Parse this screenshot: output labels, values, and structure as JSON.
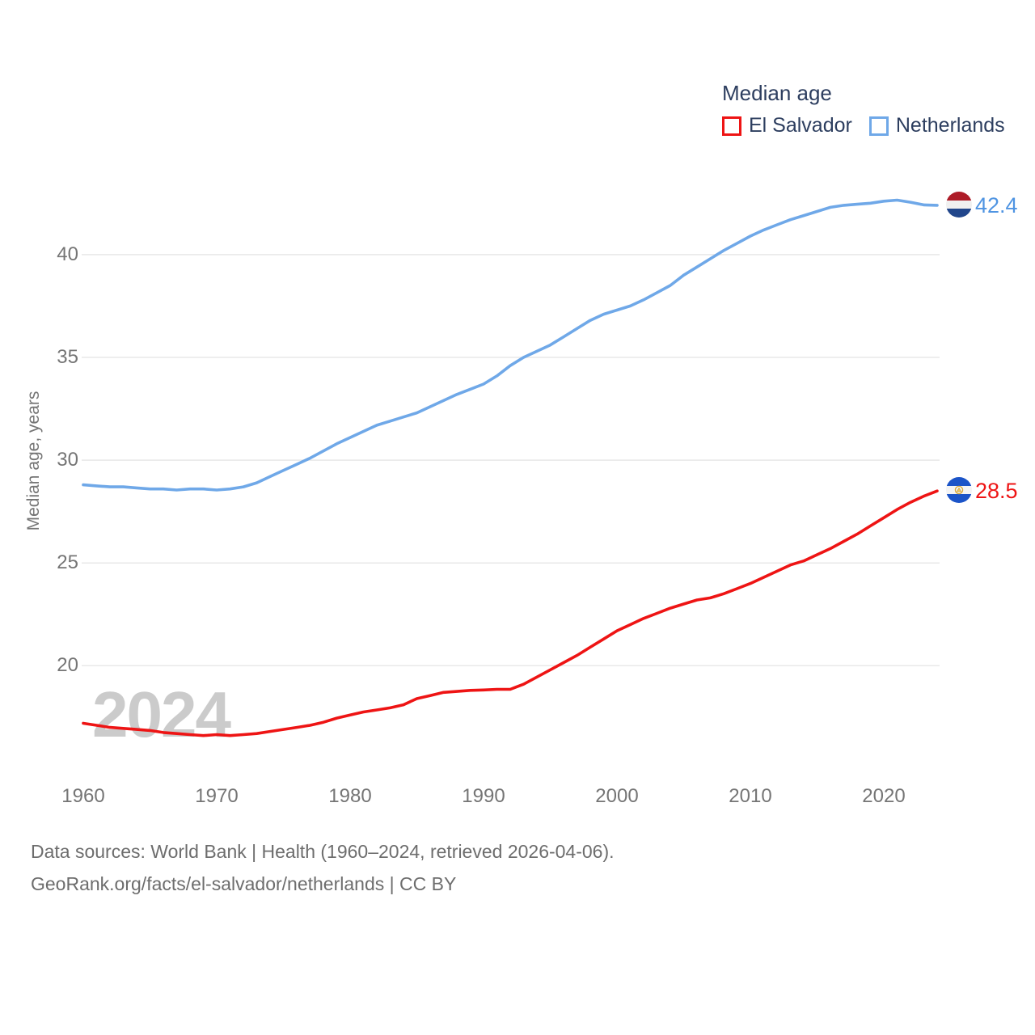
{
  "legend": {
    "title": "Median age",
    "items": [
      {
        "label": "El Salvador",
        "color": "#ee1414"
      },
      {
        "label": "Netherlands",
        "color": "#6fa8e8"
      }
    ]
  },
  "end_labels": {
    "netherlands": "42.4",
    "el_salvador": "28.5"
  },
  "watermark": "2024",
  "footer": {
    "line1": "Data sources: World Bank | Health (1960–2024, retrieved 2026-04-06).",
    "line2": "GeoRank.org/facts/el-salvador/netherlands | CC BY"
  },
  "colors": {
    "el_salvador_line": "#ee1414",
    "netherlands_line": "#6fa8e8",
    "el_salvador_label": "#ee1414",
    "netherlands_label": "#4f94e2",
    "axis_text": "#757575",
    "grid": "#e8e8e8",
    "watermark": "#cbcbcb",
    "footer_text": "#6d6d6d",
    "legend_text": "#2d3e5f"
  },
  "chart_data": {
    "type": "line",
    "title": "Median age",
    "xlabel": "",
    "ylabel": "Median age, years",
    "grid": "horizontal",
    "legend_position": "top-right",
    "xlim": [
      1960,
      2024
    ],
    "ylim": [
      15.5,
      43.2
    ],
    "yticks": [
      20,
      25,
      30,
      35,
      40
    ],
    "xticks": [
      1960,
      1970,
      1980,
      1990,
      2000,
      2010,
      2020
    ],
    "x": [
      1960,
      1961,
      1962,
      1963,
      1964,
      1965,
      1966,
      1967,
      1968,
      1969,
      1970,
      1971,
      1972,
      1973,
      1974,
      1975,
      1976,
      1977,
      1978,
      1979,
      1980,
      1981,
      1982,
      1983,
      1984,
      1985,
      1986,
      1987,
      1988,
      1989,
      1990,
      1991,
      1992,
      1993,
      1994,
      1995,
      1996,
      1997,
      1998,
      1999,
      2000,
      2001,
      2002,
      2003,
      2004,
      2005,
      2006,
      2007,
      2008,
      2009,
      2010,
      2011,
      2012,
      2013,
      2014,
      2015,
      2016,
      2017,
      2018,
      2019,
      2020,
      2021,
      2022,
      2023,
      2024
    ],
    "series": [
      {
        "name": "El Salvador",
        "color": "#ee1414",
        "end_value": 28.5,
        "values": [
          17.2,
          17.1,
          17.0,
          16.95,
          16.9,
          16.85,
          16.75,
          16.7,
          16.65,
          16.6,
          16.65,
          16.6,
          16.65,
          16.7,
          16.8,
          16.9,
          17.0,
          17.1,
          17.25,
          17.45,
          17.6,
          17.75,
          17.85,
          17.95,
          18.1,
          18.4,
          18.55,
          18.7,
          18.75,
          18.8,
          18.82,
          18.85,
          18.85,
          19.1,
          19.45,
          19.8,
          20.15,
          20.5,
          20.9,
          21.3,
          21.7,
          22.0,
          22.3,
          22.55,
          22.8,
          23.0,
          23.2,
          23.3,
          23.5,
          23.75,
          24.0,
          24.3,
          24.6,
          24.9,
          25.1,
          25.4,
          25.7,
          26.05,
          26.4,
          26.8,
          27.2,
          27.6,
          27.95,
          28.25,
          28.5
        ]
      },
      {
        "name": "Netherlands",
        "color": "#6fa8e8",
        "end_value": 42.4,
        "values": [
          28.8,
          28.75,
          28.7,
          28.7,
          28.65,
          28.6,
          28.6,
          28.55,
          28.6,
          28.6,
          28.55,
          28.6,
          28.7,
          28.9,
          29.2,
          29.5,
          29.8,
          30.1,
          30.45,
          30.8,
          31.1,
          31.4,
          31.7,
          31.9,
          32.1,
          32.3,
          32.6,
          32.9,
          33.2,
          33.45,
          33.7,
          34.1,
          34.6,
          35.0,
          35.3,
          35.6,
          36.0,
          36.4,
          36.8,
          37.1,
          37.3,
          37.5,
          37.8,
          38.15,
          38.5,
          39.0,
          39.4,
          39.8,
          40.2,
          40.55,
          40.9,
          41.2,
          41.45,
          41.7,
          41.9,
          42.1,
          42.3,
          42.4,
          42.45,
          42.5,
          42.6,
          42.65,
          42.55,
          42.42,
          42.4
        ]
      }
    ]
  }
}
